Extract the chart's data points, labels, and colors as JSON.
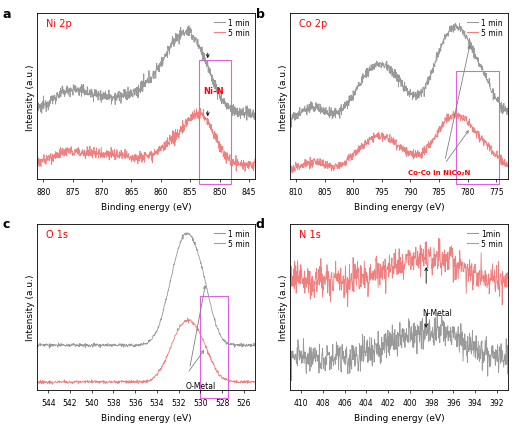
{
  "panel_labels": [
    "a",
    "b",
    "c",
    "d"
  ],
  "panel_titles": [
    "Ni 2p",
    "Co 2p",
    "O 1s",
    "N 1s"
  ],
  "xlabel": "Binding energy (eV)",
  "ylabel": "Intensity (a.u.)",
  "legend_1min_ab": "1 min",
  "legend_5min_ab": "5 min",
  "legend_1min_d": "1min",
  "legend_5min_d": "5 min",
  "color_1min": "#999999",
  "color_5min": "#f08080",
  "xlims": {
    "a": [
      881,
      844
    ],
    "b": [
      811,
      773
    ],
    "c": [
      545,
      525
    ],
    "d": [
      411,
      391
    ]
  },
  "xticks": {
    "a": [
      880,
      875,
      870,
      865,
      860,
      855,
      850,
      845
    ],
    "b": [
      810,
      805,
      800,
      795,
      790,
      785,
      780,
      775
    ],
    "c": [
      544,
      542,
      540,
      538,
      536,
      534,
      532,
      530,
      528,
      526
    ],
    "d": [
      410,
      408,
      406,
      404,
      402,
      400,
      398,
      396,
      394,
      392
    ]
  },
  "box_color": "#e060e0",
  "ann_a": "Ni-N",
  "ann_b": "Co-Co in NiCo₂N",
  "ann_c": "O-Metal",
  "ann_d": "N-Metal",
  "background": "white"
}
